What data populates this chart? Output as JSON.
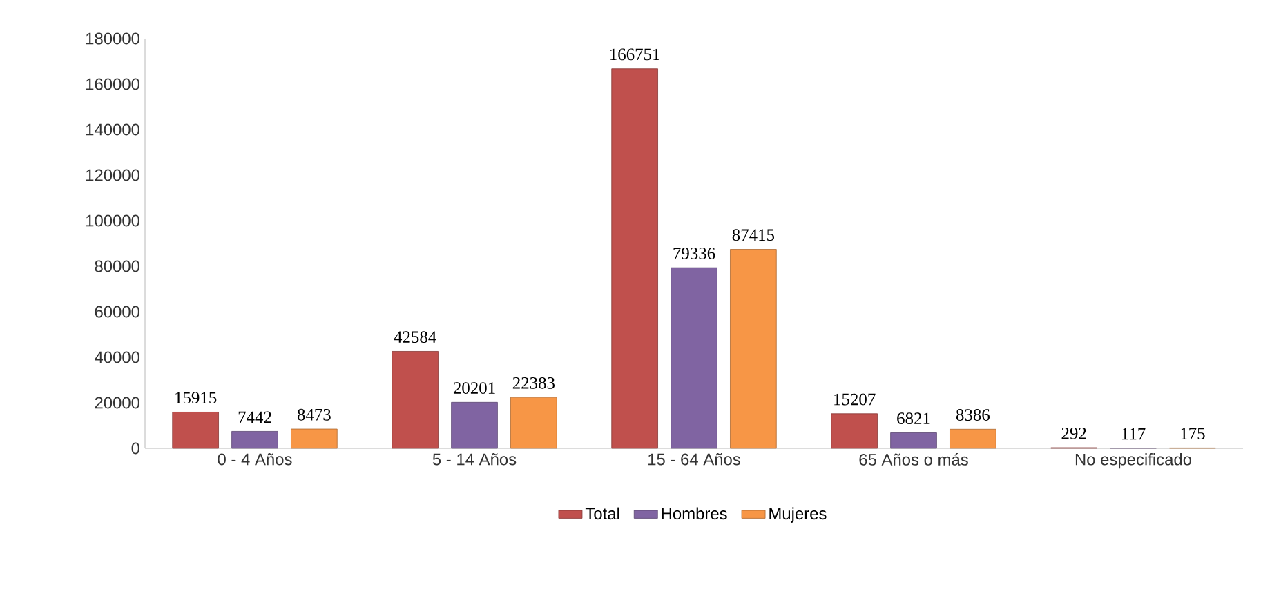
{
  "chart_data": {
    "type": "bar",
    "categories": [
      "0 - 4 Años",
      "5 - 14 Años",
      "15 - 64 Años",
      "65 Años o más",
      "No especificado"
    ],
    "series": [
      {
        "name": "Total",
        "color": "#c0504d",
        "values": [
          15915,
          42584,
          166751,
          15207,
          292
        ]
      },
      {
        "name": "Hombres",
        "color": "#8064a2",
        "values": [
          7442,
          20201,
          79336,
          6821,
          117
        ]
      },
      {
        "name": "Mujeres",
        "color": "#f79646",
        "values": [
          8473,
          22383,
          87415,
          8386,
          175
        ]
      }
    ],
    "ylim": [
      0,
      180000
    ],
    "yticks": [
      0,
      20000,
      40000,
      60000,
      80000,
      100000,
      120000,
      140000,
      160000,
      180000
    ],
    "data_labels": true,
    "legend": "bottom",
    "grid": false
  }
}
